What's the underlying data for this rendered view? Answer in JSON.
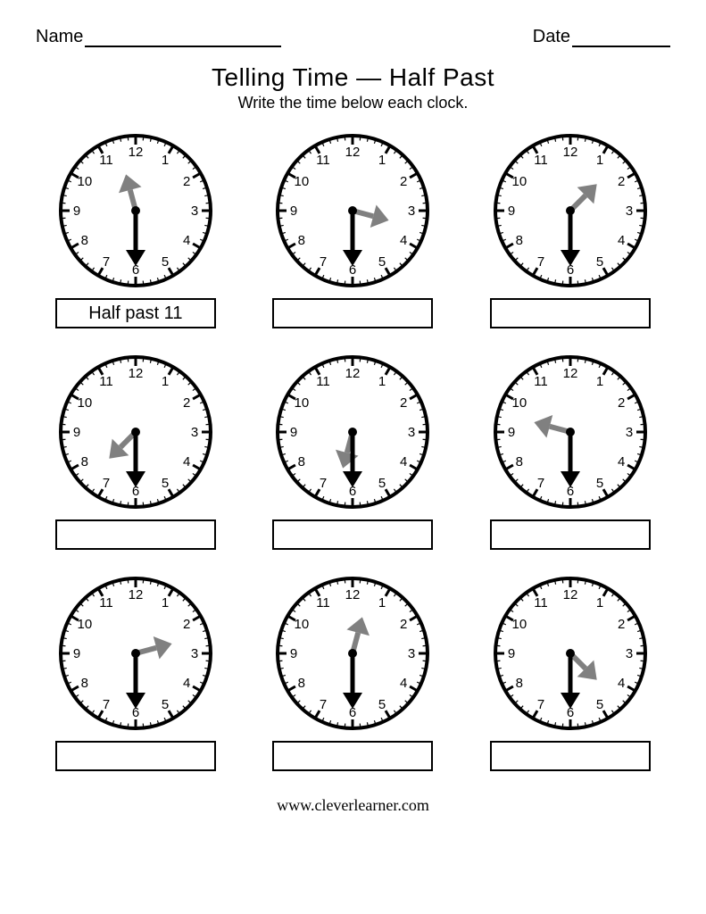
{
  "header": {
    "name_label": "Name",
    "date_label": "Date"
  },
  "title": "Telling Time — Half Past",
  "subtitle": "Write the time below each clock.",
  "footer": "www.cleverlearner.com",
  "clock_style": {
    "face_stroke": "#000000",
    "face_fill": "#ffffff",
    "hour_hand_color": "#808080",
    "minute_hand_color": "#000000",
    "tick_color": "#000000",
    "number_color": "#000000",
    "center_dot_color": "#000000",
    "face_radius": 84,
    "number_radius": 66,
    "hour_hand_length": 42,
    "minute_hand_length": 62,
    "major_tick_outer": 84,
    "major_tick_inner": 74,
    "minor_tick_outer": 84,
    "minor_tick_inner": 79
  },
  "clocks": [
    {
      "hour_hand_at": 11.5,
      "answer": "Half past 11"
    },
    {
      "hour_hand_at": 3.5,
      "answer": ""
    },
    {
      "hour_hand_at": 1.5,
      "answer": ""
    },
    {
      "hour_hand_at": 7.5,
      "answer": ""
    },
    {
      "hour_hand_at": 6.5,
      "answer": ""
    },
    {
      "hour_hand_at": 9.5,
      "answer": ""
    },
    {
      "hour_hand_at": 2.5,
      "answer": ""
    },
    {
      "hour_hand_at": 12.5,
      "answer": ""
    },
    {
      "hour_hand_at": 4.5,
      "answer": ""
    }
  ]
}
